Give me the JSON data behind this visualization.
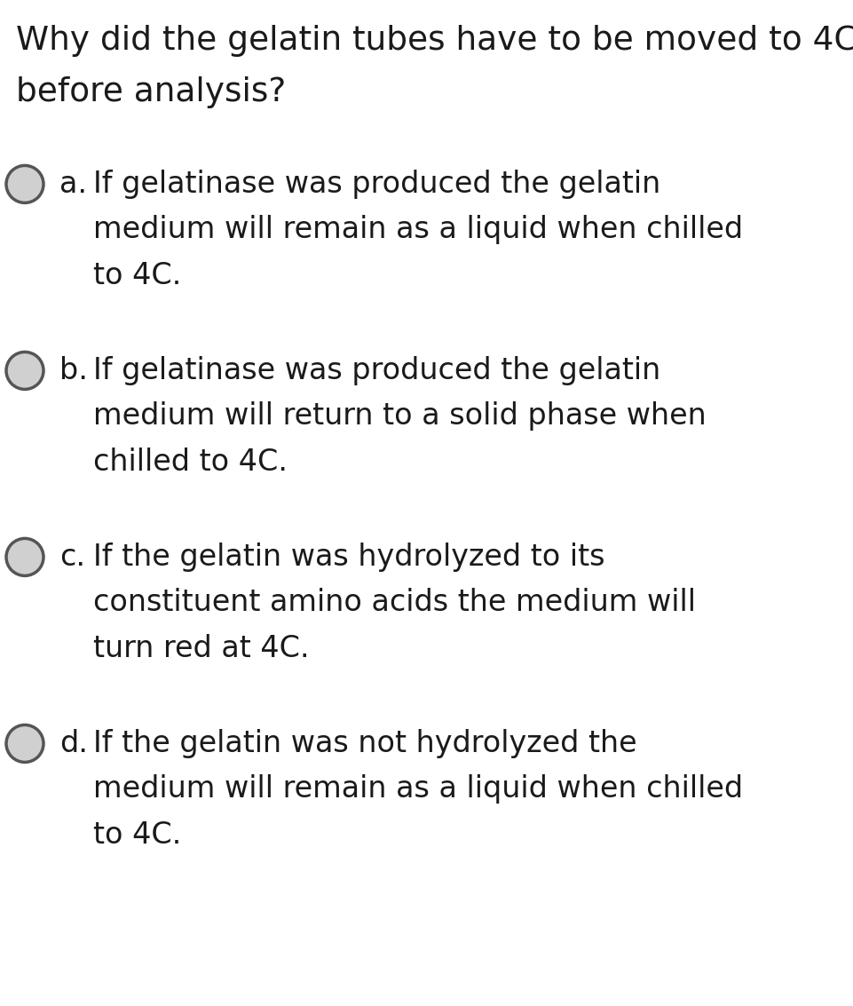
{
  "background_color": "#ffffff",
  "question_line1": "Why did the gelatin tubes have to be moved to 4C",
  "question_line2": "before analysis?",
  "question_fontsize": 27,
  "options": [
    {
      "label": "a.",
      "lines": [
        "If gelatinase was produced the gelatin",
        "medium will remain as a liquid when chilled",
        "to 4C."
      ]
    },
    {
      "label": "b.",
      "lines": [
        "If gelatinase was produced the gelatin",
        "medium will return to a solid phase when",
        "chilled to 4C."
      ]
    },
    {
      "label": "c.",
      "lines": [
        "If the gelatin was hydrolyzed to its",
        "constituent amino acids the medium will",
        "turn red at 4C."
      ]
    },
    {
      "label": "d.",
      "lines": [
        "If the gelatin was not hydrolyzed the",
        "medium will remain as a liquid when chilled",
        "to 4C."
      ]
    }
  ],
  "option_fontsize": 24,
  "circle_facecolor": "#d0d0d0",
  "circle_edgecolor": "#555555",
  "circle_linewidth": 2.5,
  "text_color": "#1a1a1a"
}
